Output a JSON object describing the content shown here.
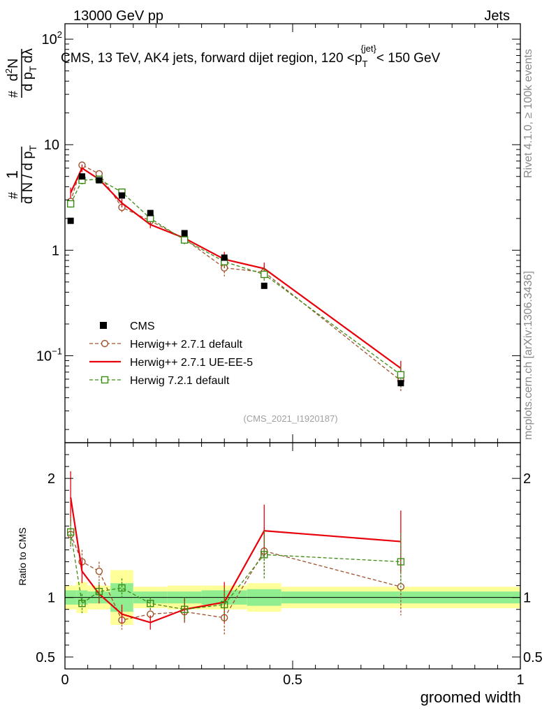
{
  "header": {
    "left": "13000 GeV pp",
    "right": "Jets"
  },
  "side_labels": {
    "rivet": "Rivet 4.1.0, ≥ 100k events",
    "mcplots": "mcplots.cern.ch [arXiv:1306.3436]"
  },
  "chart_data": {
    "type": "scatter",
    "title": "CMS, 13 TeV, AK4 jets, forward dijet region, 120 <p_T^{jet}< 150 GeV",
    "title_parts": {
      "lead": "CMS, 13 TeV, AK4 jets, forward dijet region, 120 <p",
      "sub": "T",
      "sup": "{jet}",
      "tail": "< 150 GeV"
    },
    "ylabel": "1/dN/dp_T # d²N/dp_T dλ",
    "ylabel_parts": {
      "one": "1",
      "hash": "#",
      "den": "d N / d p",
      "sub": "T",
      "num2": "d",
      "sup2": "2",
      "num3": "N",
      "den2": "d p",
      "sub2": "T",
      "lam": "dλ"
    },
    "xlabel": "groomed width",
    "watermark": "(CMS_2021_I1920187)",
    "x_range": [
      0,
      1
    ],
    "main_y_range": [
      0.015,
      140
    ],
    "main_y_scale": "log",
    "ratio_y_range": [
      0.4,
      2.3
    ],
    "ratio_ylabel": "Ratio to CMS",
    "x_ticks": [
      {
        "v": 0,
        "label": "0"
      },
      {
        "v": 0.5,
        "label": "0.5"
      },
      {
        "v": 1,
        "label": "1"
      }
    ],
    "main_y_ticks": [
      {
        "v": 100,
        "label": "10",
        "sup": "2"
      },
      {
        "v": 10,
        "label": "10",
        "sup": ""
      },
      {
        "v": 1,
        "label": "1",
        "sup": ""
      },
      {
        "v": 0.1,
        "label": "10",
        "sup": "−1"
      }
    ],
    "ratio_y_ticks": [
      {
        "v": 0.5,
        "label": "0.5"
      },
      {
        "v": 1,
        "label": "1"
      },
      {
        "v": 2,
        "label": "2"
      }
    ],
    "bin_edges": [
      0,
      0.025,
      0.05,
      0.1,
      0.15,
      0.225,
      0.3,
      0.4,
      0.475,
      1.0
    ],
    "x_points": [
      0.0125,
      0.0375,
      0.075,
      0.125,
      0.1875,
      0.2625,
      0.35,
      0.4375,
      0.7375
    ],
    "cms": {
      "name": "CMS",
      "values": [
        1.9,
        5.0,
        4.6,
        3.3,
        2.25,
        1.45,
        0.85,
        0.46,
        0.055
      ],
      "band_inner": [
        0.06,
        0.06,
        0.05,
        0.12,
        0.05,
        0.05,
        0.06,
        0.07,
        0.05
      ],
      "band_outer": [
        0.1,
        0.13,
        0.1,
        0.23,
        0.09,
        0.1,
        0.1,
        0.12,
        0.09
      ]
    },
    "series": [
      {
        "name": "Herwig++ 2.7.1 default",
        "color": "#a0522d",
        "marker": "circle",
        "line": "dashed",
        "values": [
          2.9,
          6.4,
          5.3,
          2.55,
          1.9,
          1.28,
          0.68,
          0.62,
          0.058
        ],
        "ratio": [
          1.53,
          1.3,
          1.22,
          0.81,
          0.86,
          0.88,
          0.83,
          1.39,
          1.09
        ],
        "ratio_err": [
          0.12,
          0.1,
          0.08,
          0.08,
          0.05,
          0.1,
          0.14,
          0.2,
          0.24
        ]
      },
      {
        "name": "Herwig++ 2.7.1 UE-EE-5",
        "color": "#e8000b",
        "marker": "none",
        "line": "solid",
        "values": [
          3.5,
          6.0,
          4.7,
          2.8,
          1.75,
          1.3,
          0.82,
          0.67,
          0.076
        ],
        "ratio": [
          1.84,
          1.22,
          1.03,
          0.86,
          0.79,
          0.9,
          0.96,
          1.56,
          1.47
        ],
        "ratio_err": [
          0.22,
          0.1,
          0.08,
          0.08,
          0.06,
          0.1,
          0.17,
          0.22,
          0.26
        ]
      },
      {
        "name": "Herwig 7.2.1 default",
        "color": "#3c8c14",
        "marker": "square",
        "line": "dashed",
        "values": [
          2.75,
          4.6,
          4.7,
          3.55,
          2.0,
          1.25,
          0.78,
          0.59,
          0.066
        ],
        "ratio": [
          1.55,
          0.95,
          1.05,
          1.08,
          0.95,
          0.9,
          0.94,
          1.36,
          1.3
        ],
        "ratio_err": [
          0.12,
          0.08,
          0.08,
          0.08,
          0.05,
          0.1,
          0.14,
          0.2,
          0.24
        ]
      }
    ],
    "colors": {
      "band_inner": "#90ee90",
      "band_outer": "#ffff99",
      "cms": "#000000"
    }
  }
}
